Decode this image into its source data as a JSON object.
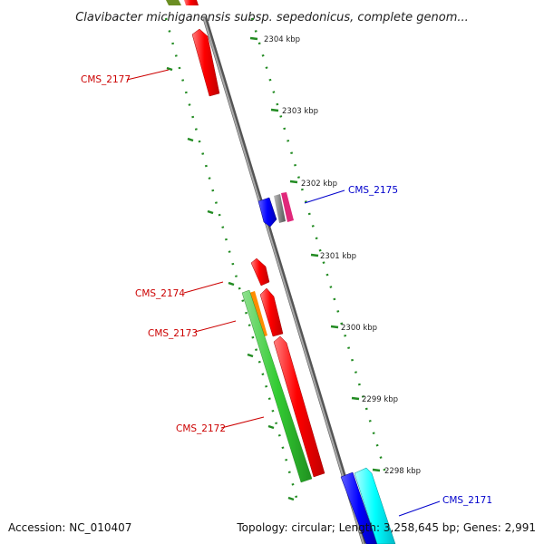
{
  "title": "Clavibacter michiganensis subsp. sepedonicus, complete genom...",
  "footer": {
    "accession": "Accession: NC_010407",
    "summary": "Topology: circular; Length: 3,258,645 bp; Genes: 2,991"
  },
  "colors": {
    "forward_gene": "#ff0000",
    "reverse_gene": "#0000ff",
    "forward_label": "#cc0000",
    "reverse_label": "#0000cc",
    "backbone": "#888888",
    "tick": "#228b22"
  },
  "scale": {
    "ticks": [
      {
        "label": "2304 kbp"
      },
      {
        "label": "2303 kbp"
      },
      {
        "label": "2302 kbp"
      },
      {
        "label": "2301 kbp"
      },
      {
        "label": "2300 kbp"
      },
      {
        "label": "2299 kbp"
      },
      {
        "label": "2298 kbp"
      }
    ]
  },
  "genes": [
    {
      "label": "CMS_2177",
      "strand": "forward"
    },
    {
      "label": "CMS_2175",
      "strand": "reverse"
    },
    {
      "label": "CMS_2174",
      "strand": "forward"
    },
    {
      "label": "CMS_2173",
      "strand": "forward"
    },
    {
      "label": "CMS_2172",
      "strand": "forward"
    },
    {
      "label": "CMS_2171",
      "strand": "reverse"
    }
  ]
}
